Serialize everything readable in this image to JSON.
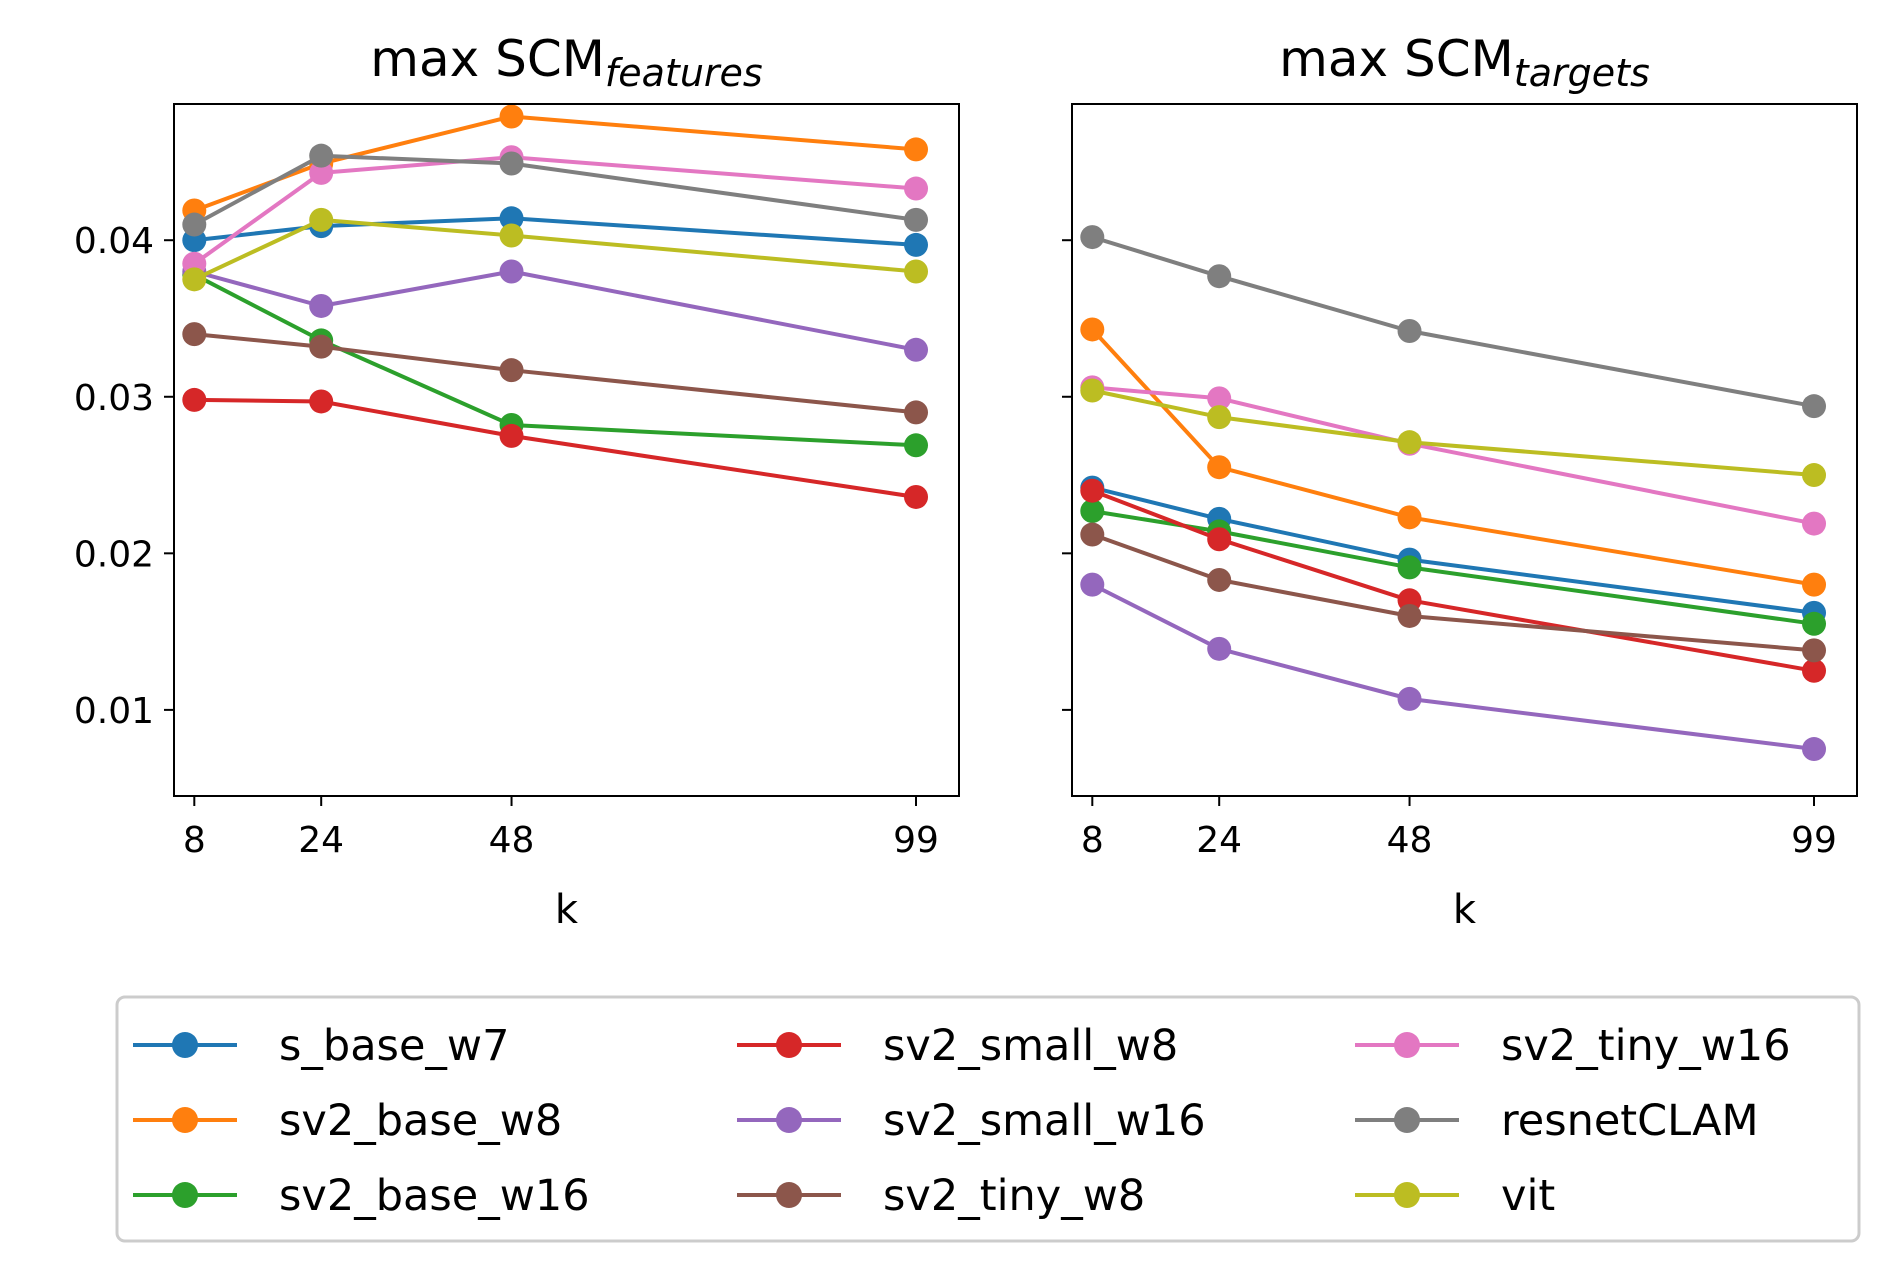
{
  "chart_data": [
    {
      "type": "line",
      "title": "max SCM",
      "title_subscript": "features",
      "xlabel": "k",
      "ylabel": "",
      "x": [
        8,
        24,
        48,
        99
      ],
      "x_tick_labels": [
        "8",
        "24",
        "48",
        "99"
      ],
      "ylim": [
        0.0045,
        0.0487
      ],
      "y_ticks": [
        0.01,
        0.02,
        0.03,
        0.04
      ],
      "y_tick_labels": [
        "0.01",
        "0.02",
        "0.03",
        "0.04"
      ],
      "show_y_tick_labels": true,
      "series": [
        {
          "name": "s_base_w7",
          "values": [
            0.04,
            0.0409,
            0.0414,
            0.0397
          ]
        },
        {
          "name": "sv2_base_w8",
          "values": [
            0.0419,
            0.0449,
            0.0479,
            0.0458
          ]
        },
        {
          "name": "sv2_base_w16",
          "values": [
            0.0378,
            0.0336,
            0.0282,
            0.0269
          ]
        },
        {
          "name": "sv2_small_w8",
          "values": [
            0.0298,
            0.0297,
            0.0275,
            0.0236
          ]
        },
        {
          "name": "sv2_small_w16",
          "values": [
            0.038,
            0.0358,
            0.038,
            0.033
          ]
        },
        {
          "name": "sv2_tiny_w8",
          "values": [
            0.034,
            0.0332,
            0.0317,
            0.029
          ]
        },
        {
          "name": "sv2_tiny_w16",
          "values": [
            0.0385,
            0.0443,
            0.0453,
            0.0433
          ]
        },
        {
          "name": "resnetCLAM",
          "values": [
            0.041,
            0.0454,
            0.0449,
            0.0413
          ]
        },
        {
          "name": "vit",
          "values": [
            0.0375,
            0.0413,
            0.0403,
            0.038
          ]
        }
      ]
    },
    {
      "type": "line",
      "title": "max SCM",
      "title_subscript": "targets",
      "xlabel": "k",
      "ylabel": "",
      "x": [
        8,
        24,
        48,
        99
      ],
      "x_tick_labels": [
        "8",
        "24",
        "48",
        "99"
      ],
      "ylim": [
        0.0045,
        0.0487
      ],
      "y_ticks": [
        0.01,
        0.02,
        0.03,
        0.04
      ],
      "y_tick_labels": [
        "",
        "",
        "",
        ""
      ],
      "show_y_tick_labels": false,
      "series": [
        {
          "name": "s_base_w7",
          "values": [
            0.0242,
            0.0222,
            0.0196,
            0.0162
          ]
        },
        {
          "name": "sv2_base_w8",
          "values": [
            0.0343,
            0.0255,
            0.0223,
            0.018
          ]
        },
        {
          "name": "sv2_base_w16",
          "values": [
            0.0227,
            0.0214,
            0.0191,
            0.0155
          ]
        },
        {
          "name": "sv2_small_w8",
          "values": [
            0.024,
            0.0209,
            0.017,
            0.0125
          ]
        },
        {
          "name": "sv2_small_w16",
          "values": [
            0.018,
            0.0139,
            0.0107,
            0.0075
          ]
        },
        {
          "name": "sv2_tiny_w8",
          "values": [
            0.0212,
            0.0183,
            0.016,
            0.0138
          ]
        },
        {
          "name": "sv2_tiny_w16",
          "values": [
            0.0306,
            0.0299,
            0.027,
            0.0219
          ]
        },
        {
          "name": "resnetCLAM",
          "values": [
            0.0402,
            0.0377,
            0.0342,
            0.0294
          ]
        },
        {
          "name": "vit",
          "values": [
            0.0304,
            0.0287,
            0.0271,
            0.025
          ]
        }
      ]
    }
  ],
  "legend": {
    "placement": "bottom",
    "columns": 3,
    "entries": [
      {
        "name": "s_base_w7",
        "color": "#1f77b4"
      },
      {
        "name": "sv2_base_w8",
        "color": "#ff7f0e"
      },
      {
        "name": "sv2_base_w16",
        "color": "#2ca02c"
      },
      {
        "name": "sv2_small_w8",
        "color": "#d62728"
      },
      {
        "name": "sv2_small_w16",
        "color": "#9467bd"
      },
      {
        "name": "sv2_tiny_w8",
        "color": "#8c564b"
      },
      {
        "name": "sv2_tiny_w16",
        "color": "#e377c2"
      },
      {
        "name": "resnetCLAM",
        "color": "#7f7f7f"
      },
      {
        "name": "vit",
        "color": "#bcbd22"
      }
    ]
  }
}
